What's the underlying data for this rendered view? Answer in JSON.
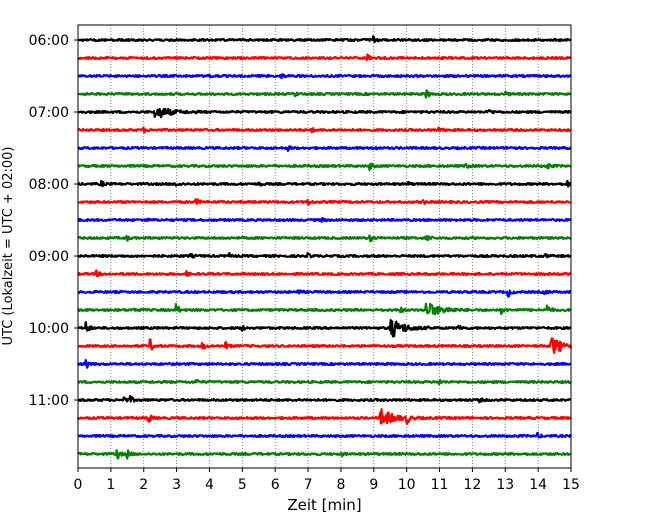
{
  "chart_data": {
    "type": "line",
    "title": "",
    "xlabel": "Zeit  [min]",
    "ylabel": "UTC (Lokalzeit = UTC + 02:00)",
    "xlim": [
      0,
      15
    ],
    "x_ticks": [
      0,
      1,
      2,
      3,
      4,
      5,
      6,
      7,
      8,
      9,
      10,
      11,
      12,
      13,
      14,
      15
    ],
    "x_tick_labels": [
      "0",
      "1",
      "2",
      "3",
      "4",
      "5",
      "6",
      "7",
      "8",
      "9",
      "10",
      "11",
      "12",
      "13",
      "14",
      "15"
    ],
    "y_tick_labels": [
      "06:00",
      "07:00",
      "08:00",
      "09:00",
      "10:00",
      "11:00"
    ],
    "y_ticks_trace_index": [
      0,
      4,
      8,
      12,
      16,
      20
    ],
    "grid": {
      "x": true,
      "y": false,
      "style": "dotted"
    },
    "rows_per_hour": 4,
    "row_interval_minutes": 15,
    "color_cycle": [
      "#000000",
      "#ff0000",
      "#0000ff",
      "#008000"
    ],
    "traces": [
      {
        "start": "06:00",
        "events": [
          [
            9.0,
            4
          ]
        ]
      },
      {
        "start": "06:15",
        "events": [
          [
            8.8,
            3
          ]
        ]
      },
      {
        "start": "06:30",
        "events": [
          [
            4.0,
            2
          ],
          [
            6.2,
            2
          ]
        ]
      },
      {
        "start": "06:45",
        "events": [
          [
            6.6,
            2
          ],
          [
            10.6,
            4
          ],
          [
            13.0,
            2
          ]
        ]
      },
      {
        "start": "07:00",
        "events": [
          [
            2.35,
            7
          ],
          [
            12.5,
            3
          ]
        ]
      },
      {
        "start": "07:15",
        "events": [
          [
            2.0,
            2
          ],
          [
            7.1,
            2
          ],
          [
            11.0,
            2
          ]
        ]
      },
      {
        "start": "07:30",
        "events": [
          [
            6.4,
            2
          ],
          [
            9.0,
            2
          ],
          [
            13.2,
            2
          ]
        ]
      },
      {
        "start": "07:45",
        "events": [
          [
            8.9,
            3
          ],
          [
            11.8,
            3
          ],
          [
            14.3,
            3
          ]
        ]
      },
      {
        "start": "08:00",
        "events": [
          [
            0.7,
            3
          ],
          [
            3.0,
            2
          ],
          [
            5.5,
            2
          ],
          [
            10.0,
            3
          ],
          [
            14.9,
            3
          ]
        ]
      },
      {
        "start": "08:15",
        "events": [
          [
            3.6,
            3
          ],
          [
            7.0,
            3
          ],
          [
            10.5,
            2
          ]
        ]
      },
      {
        "start": "08:30",
        "events": [
          [
            2.0,
            2
          ],
          [
            7.4,
            2
          ]
        ]
      },
      {
        "start": "08:45",
        "events": [
          [
            1.5,
            2
          ],
          [
            8.9,
            3
          ],
          [
            10.6,
            4
          ]
        ]
      },
      {
        "start": "09:00",
        "events": [
          [
            3.4,
            2
          ],
          [
            4.6,
            2
          ],
          [
            7.0,
            2
          ],
          [
            14.2,
            2
          ]
        ]
      },
      {
        "start": "09:15",
        "events": [
          [
            0.55,
            3
          ],
          [
            3.3,
            2
          ]
        ]
      },
      {
        "start": "09:30",
        "events": [
          [
            6.7,
            2
          ],
          [
            13.1,
            4
          ],
          [
            14.2,
            2
          ]
        ]
      },
      {
        "start": "09:45",
        "events": [
          [
            1.7,
            3
          ],
          [
            3.0,
            6
          ],
          [
            9.8,
            3
          ],
          [
            10.6,
            8
          ],
          [
            11.2,
            3
          ],
          [
            12.9,
            3
          ],
          [
            14.3,
            5
          ]
        ]
      },
      {
        "start": "10:00",
        "events": [
          [
            0.25,
            6
          ],
          [
            5.0,
            2
          ],
          [
            9.5,
            10
          ],
          [
            11.6,
            3
          ]
        ]
      },
      {
        "start": "10:15",
        "events": [
          [
            2.2,
            6
          ],
          [
            3.8,
            3
          ],
          [
            4.5,
            3
          ],
          [
            14.4,
            9
          ]
        ]
      },
      {
        "start": "10:30",
        "events": [
          [
            0.25,
            5
          ]
        ]
      },
      {
        "start": "10:45",
        "events": [
          [
            3.6,
            2
          ],
          [
            11.0,
            2
          ]
        ]
      },
      {
        "start": "11:00",
        "events": [
          [
            1.4,
            3
          ],
          [
            1.6,
            3
          ],
          [
            12.2,
            2
          ]
        ]
      },
      {
        "start": "11:15",
        "events": [
          [
            2.15,
            5
          ],
          [
            9.2,
            9
          ],
          [
            10.0,
            5
          ]
        ]
      },
      {
        "start": "11:30",
        "events": [
          [
            14.0,
            2
          ]
        ]
      },
      {
        "start": "11:45",
        "events": [
          [
            1.2,
            5
          ],
          [
            1.5,
            4
          ],
          [
            8.0,
            2
          ]
        ]
      }
    ]
  }
}
